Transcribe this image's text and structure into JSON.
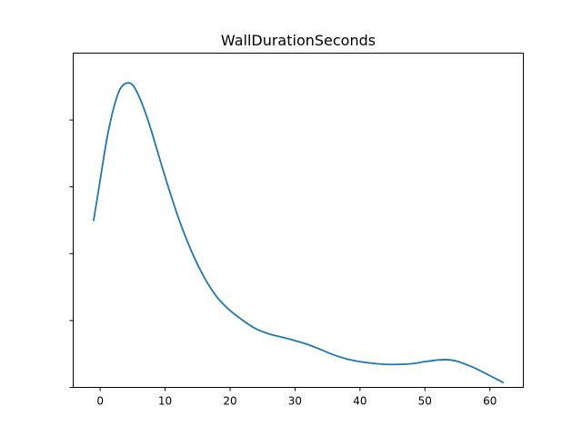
{
  "chart_data": {
    "type": "line",
    "title": "WallDurationSeconds",
    "xlabel": "",
    "ylabel": "",
    "xlim": [
      -4.15,
      65.15
    ],
    "ylim": [
      0,
      1.0
    ],
    "x_ticks": [
      0,
      10,
      20,
      30,
      40,
      50,
      60
    ],
    "x_tick_labels": [
      "0",
      "10",
      "20",
      "30",
      "40",
      "50",
      "60"
    ],
    "y_ticks": [
      0.2,
      0.4,
      0.6,
      0.8
    ],
    "y_tick_labels": [
      "",
      "",
      "",
      ""
    ],
    "grid": false,
    "legend": "none",
    "series_color": "#1f77b4",
    "series": [
      {
        "x": [
          -1,
          0,
          1,
          2,
          3,
          4,
          5,
          6,
          7,
          8,
          10,
          12,
          14,
          16,
          18,
          20,
          22,
          24,
          26,
          28,
          30,
          32,
          34,
          36,
          38,
          40,
          42,
          44,
          46,
          48,
          50,
          52,
          53,
          54,
          55,
          56,
          58,
          60,
          62
        ],
        "values": [
          0.5,
          0.62,
          0.74,
          0.83,
          0.89,
          0.91,
          0.905,
          0.87,
          0.82,
          0.76,
          0.63,
          0.51,
          0.41,
          0.33,
          0.27,
          0.23,
          0.2,
          0.175,
          0.16,
          0.15,
          0.14,
          0.128,
          0.113,
          0.097,
          0.085,
          0.077,
          0.072,
          0.069,
          0.069,
          0.071,
          0.077,
          0.082,
          0.083,
          0.082,
          0.078,
          0.071,
          0.055,
          0.035,
          0.015
        ]
      }
    ]
  }
}
